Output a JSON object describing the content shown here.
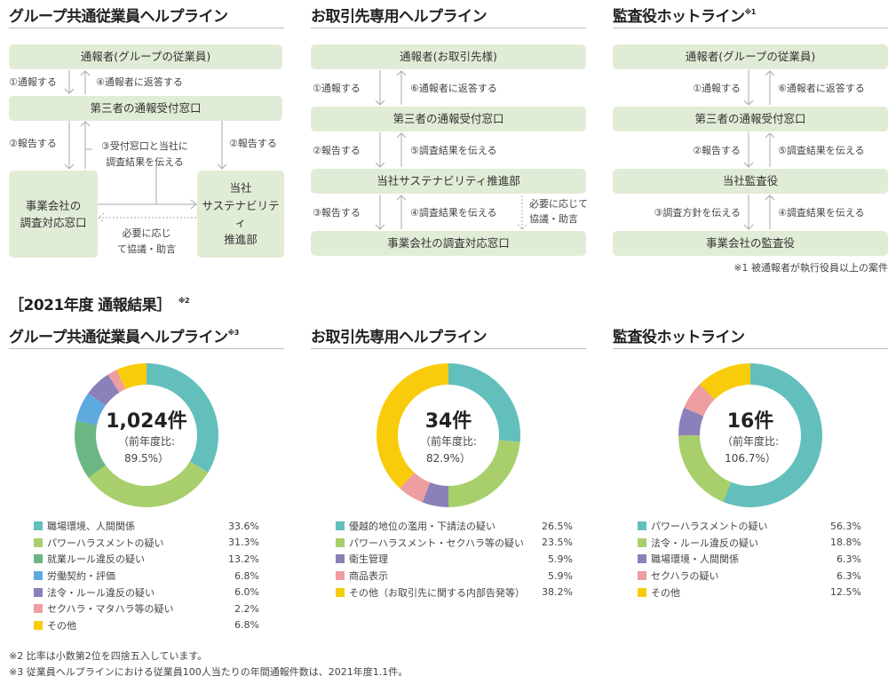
{
  "colors": {
    "teal": "#62bfbc",
    "lightgreen": "#a8cf6b",
    "green": "#6cb683",
    "blue": "#5eaadf",
    "purple": "#8b80b9",
    "pink": "#ee9da0",
    "yellow": "#f8cc0a",
    "box": "#e1ecd6"
  },
  "flow1": {
    "title": "グループ共通従業員ヘルプライン",
    "boxes": [
      "通報者(グループの従業員)",
      "第三者の通報受付窓口",
      "事業会社の\n調査対応窓口",
      "当社\nサステナビリティ\n推進部"
    ],
    "labels": [
      "①通報する",
      "④通報者に返答する",
      "②報告する",
      "③受付窓口と当社に\n調査結果を伝える",
      "②報告する",
      "必要に応じ\nて協議・助言"
    ]
  },
  "flow2": {
    "title": "お取引先専用ヘルプライン",
    "boxes": [
      "通報者(お取引先様)",
      "第三者の通報受付窓口",
      "当社サステナビリティ推進部",
      "事業会社の調査対応窓口"
    ],
    "labels": [
      "①通報する",
      "⑥通報者に返答する",
      "②報告する",
      "⑤調査結果を伝える",
      "③報告する",
      "④調査結果を伝える",
      "必要に応じて\n協議・助言"
    ]
  },
  "flow3": {
    "title": "監査役ホットライン",
    "title_note": "※1",
    "boxes": [
      "通報者(グループの従業員)",
      "第三者の通報受付窓口",
      "当社監査役",
      "事業会社の監査役"
    ],
    "labels": [
      "①通報する",
      "⑥通報者に返答する",
      "②報告する",
      "⑤調査結果を伝える",
      "③調査方針を伝える",
      "④調査結果を伝える"
    ],
    "footnote": "※1 被通報者が執行役員以上の案件"
  },
  "results_heading": "［2021年度 通報結果］",
  "results_note": "※2",
  "chart_data": [
    {
      "type": "pie",
      "title": "グループ共通従業員ヘルプライン",
      "title_note": "※3",
      "total": "1,024件",
      "prev_label": "（前年度比:",
      "prev_value": "89.5%）",
      "categories": [
        "職場環境、人間関係",
        "パワーハラスメントの疑い",
        "就業ルール違反の疑い",
        "労働契約・評価",
        "法令・ルール違反の疑い",
        "セクハラ・マタハラ等の疑い",
        "その他"
      ],
      "values": [
        33.6,
        31.3,
        13.2,
        6.8,
        6.0,
        2.2,
        6.8
      ],
      "labels": [
        "33.6%",
        "31.3%",
        "13.2%",
        "6.8%",
        "6.0%",
        "2.2%",
        "6.8%"
      ],
      "colors": [
        "#62bfbc",
        "#a8cf6b",
        "#6cb683",
        "#5eaadf",
        "#8b80b9",
        "#ee9da0",
        "#f8cc0a"
      ]
    },
    {
      "type": "pie",
      "title": "お取引先専用ヘルプライン",
      "total": "34件",
      "prev_label": "（前年度比:",
      "prev_value": "82.9%）",
      "categories": [
        "優越的地位の濫用・下請法の疑い",
        "パワーハラスメント・セクハラ等の疑い",
        "衛生管理",
        "商品表示",
        "その他（お取引先に関する内部告発等）"
      ],
      "values": [
        26.5,
        23.5,
        5.9,
        5.9,
        38.2
      ],
      "labels": [
        "26.5%",
        "23.5%",
        "5.9%",
        "5.9%",
        "38.2%"
      ],
      "colors": [
        "#62bfbc",
        "#a8cf6b",
        "#8b80b9",
        "#ee9da0",
        "#f8cc0a"
      ]
    },
    {
      "type": "pie",
      "title": "監査役ホットライン",
      "total": "16件",
      "prev_label": "（前年度比:",
      "prev_value": "106.7%）",
      "categories": [
        "パワーハラスメントの疑い",
        "法令・ルール違反の疑い",
        "職場環境・人間関係",
        "セクハラの疑い",
        "その他"
      ],
      "values": [
        56.3,
        18.8,
        6.3,
        6.3,
        12.5
      ],
      "labels": [
        "56.3%",
        "18.8%",
        "6.3%",
        "6.3%",
        "12.5%"
      ],
      "colors": [
        "#62bfbc",
        "#a8cf6b",
        "#8b80b9",
        "#ee9da0",
        "#f8cc0a"
      ]
    }
  ],
  "footnotes": [
    "※2 比率は小数第2位を四捨五入しています。",
    "※3 従業員ヘルプラインにおける従業員100人当たりの年間通報件数は、2021年度1.1件。"
  ]
}
